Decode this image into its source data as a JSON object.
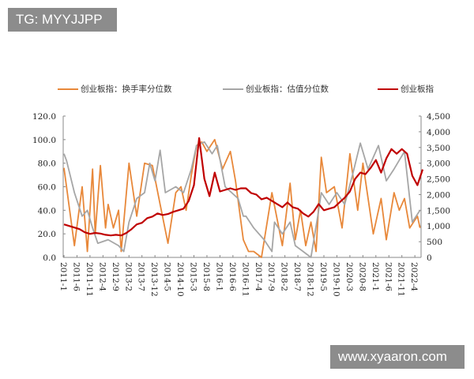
{
  "watermarks": {
    "top_left": "TG: MYYJJPP",
    "bottom_right": "www.xyaaron.com"
  },
  "chart_data": {
    "type": "line",
    "title": "",
    "legend_position": "top",
    "grid": false,
    "y_left": {
      "ylim": [
        0,
        120
      ],
      "ticks": [
        "0.0",
        "20.0",
        "40.0",
        "60.0",
        "80.0",
        "100.0",
        "120.0"
      ]
    },
    "y_right": {
      "ylim": [
        0,
        4500
      ],
      "ticks": [
        "0",
        "500",
        "1,000",
        "1,500",
        "2,000",
        "2,500",
        "3,000",
        "3,500",
        "4,000",
        "4,500"
      ]
    },
    "x_ticks": [
      "2011-1",
      "2011-6",
      "2011-11",
      "2012-4",
      "2012-9",
      "2013-2",
      "2013-7",
      "2013-12",
      "2014-5",
      "2014-10",
      "2015-3",
      "2015-8",
      "2016-1",
      "2016-6",
      "2016-11",
      "2017-4",
      "2017-9",
      "2018-2",
      "2018-7",
      "2018-12",
      "2019-5",
      "2019-10",
      "2020-3",
      "2020-8",
      "2021-1",
      "2021-6",
      "2021-11",
      "2022-4"
    ],
    "series": [
      {
        "name": "创业板指：换手率分位数",
        "axis": "left",
        "color": "#e8883a",
        "points": [
          [
            "2011-1",
            76
          ],
          [
            "2011-5",
            10
          ],
          [
            "2011-8",
            60
          ],
          [
            "2011-10",
            5
          ],
          [
            "2011-12",
            75
          ],
          [
            "2012-1",
            20
          ],
          [
            "2012-3",
            78
          ],
          [
            "2012-5",
            25
          ],
          [
            "2012-6",
            45
          ],
          [
            "2012-8",
            25
          ],
          [
            "2012-10",
            40
          ],
          [
            "2012-11",
            5
          ],
          [
            "2013-2",
            80
          ],
          [
            "2013-5",
            35
          ],
          [
            "2013-8",
            80
          ],
          [
            "2013-11",
            78
          ],
          [
            "2014-2",
            45
          ],
          [
            "2014-5",
            12
          ],
          [
            "2014-8",
            55
          ],
          [
            "2014-10",
            60
          ],
          [
            "2014-12",
            40
          ],
          [
            "2015-2",
            70
          ],
          [
            "2015-4",
            95
          ],
          [
            "2015-6",
            98
          ],
          [
            "2015-8",
            90
          ],
          [
            "2015-11",
            100
          ],
          [
            "2016-2",
            75
          ],
          [
            "2016-5",
            90
          ],
          [
            "2016-7",
            65
          ],
          [
            "2016-10",
            15
          ],
          [
            "2016-12",
            5
          ],
          [
            "2017-2",
            5
          ],
          [
            "2017-5",
            0
          ],
          [
            "2017-9",
            55
          ],
          [
            "2018-1",
            10
          ],
          [
            "2018-4",
            63
          ],
          [
            "2018-6",
            15
          ],
          [
            "2018-8",
            40
          ],
          [
            "2018-10",
            10
          ],
          [
            "2018-12",
            30
          ],
          [
            "2019-2",
            5
          ],
          [
            "2019-4",
            85
          ],
          [
            "2019-6",
            55
          ],
          [
            "2019-9",
            60
          ],
          [
            "2019-12",
            25
          ],
          [
            "2020-3",
            88
          ],
          [
            "2020-6",
            40
          ],
          [
            "2020-8",
            80
          ],
          [
            "2020-12",
            20
          ],
          [
            "2021-3",
            50
          ],
          [
            "2021-5",
            15
          ],
          [
            "2021-8",
            55
          ],
          [
            "2021-10",
            40
          ],
          [
            "2021-12",
            50
          ],
          [
            "2022-2",
            25
          ],
          [
            "2022-5",
            35
          ],
          [
            "2022-6",
            25
          ]
        ]
      },
      {
        "name": "创业板指：估值分位数",
        "axis": "left",
        "color": "#a6a6a6",
        "points": [
          [
            "2011-1",
            88
          ],
          [
            "2011-2",
            82
          ],
          [
            "2011-5",
            55
          ],
          [
            "2011-8",
            35
          ],
          [
            "2011-10",
            40
          ],
          [
            "2011-12",
            25
          ],
          [
            "2012-2",
            12
          ],
          [
            "2012-6",
            15
          ],
          [
            "2012-10",
            10
          ],
          [
            "2012-12",
            5
          ],
          [
            "2013-2",
            30
          ],
          [
            "2013-5",
            50
          ],
          [
            "2013-8",
            55
          ],
          [
            "2013-10",
            80
          ],
          [
            "2013-12",
            65
          ],
          [
            "2014-2",
            91
          ],
          [
            "2014-4",
            55
          ],
          [
            "2014-8",
            60
          ],
          [
            "2014-11",
            55
          ],
          [
            "2015-2",
            75
          ],
          [
            "2015-4",
            95
          ],
          [
            "2015-7",
            98
          ],
          [
            "2015-10",
            88
          ],
          [
            "2015-12",
            95
          ],
          [
            "2016-3",
            60
          ],
          [
            "2016-8",
            50
          ],
          [
            "2016-10",
            35
          ],
          [
            "2016-11",
            35
          ],
          [
            "2017-2",
            25
          ],
          [
            "2017-6",
            15
          ],
          [
            "2017-9",
            5
          ],
          [
            "2017-10",
            30
          ],
          [
            "2018-1",
            20
          ],
          [
            "2018-4",
            30
          ],
          [
            "2018-6",
            10
          ],
          [
            "2018-9",
            5
          ],
          [
            "2018-12",
            0
          ],
          [
            "2019-3",
            40
          ],
          [
            "2019-4",
            55
          ],
          [
            "2019-7",
            45
          ],
          [
            "2019-10",
            55
          ],
          [
            "2020-1",
            45
          ],
          [
            "2020-4",
            70
          ],
          [
            "2020-7",
            97
          ],
          [
            "2020-10",
            75
          ],
          [
            "2021-2",
            95
          ],
          [
            "2021-5",
            65
          ],
          [
            "2021-8",
            75
          ],
          [
            "2021-12",
            90
          ],
          [
            "2022-3",
            30
          ],
          [
            "2022-6",
            40
          ]
        ]
      },
      {
        "name": "创业板指",
        "axis": "right",
        "color": "#c00000",
        "points": [
          [
            "2011-1",
            1050
          ],
          [
            "2011-3",
            1000
          ],
          [
            "2011-5",
            950
          ],
          [
            "2011-7",
            900
          ],
          [
            "2011-9",
            800
          ],
          [
            "2011-11",
            750
          ],
          [
            "2012-1",
            780
          ],
          [
            "2012-3",
            760
          ],
          [
            "2012-5",
            720
          ],
          [
            "2012-7",
            700
          ],
          [
            "2012-9",
            720
          ],
          [
            "2012-11",
            700
          ],
          [
            "2013-1",
            780
          ],
          [
            "2013-3",
            900
          ],
          [
            "2013-5",
            1050
          ],
          [
            "2013-7",
            1100
          ],
          [
            "2013-9",
            1250
          ],
          [
            "2013-11",
            1300
          ],
          [
            "2014-1",
            1400
          ],
          [
            "2014-3",
            1350
          ],
          [
            "2014-5",
            1380
          ],
          [
            "2014-7",
            1450
          ],
          [
            "2014-9",
            1500
          ],
          [
            "2014-11",
            1550
          ],
          [
            "2015-1",
            1800
          ],
          [
            "2015-3",
            2300
          ],
          [
            "2015-5",
            3800
          ],
          [
            "2015-7",
            2500
          ],
          [
            "2015-9",
            1950
          ],
          [
            "2015-11",
            2700
          ],
          [
            "2016-1",
            2100
          ],
          [
            "2016-3",
            2150
          ],
          [
            "2016-5",
            2200
          ],
          [
            "2016-7",
            2150
          ],
          [
            "2016-9",
            2200
          ],
          [
            "2016-11",
            2200
          ],
          [
            "2017-1",
            2050
          ],
          [
            "2017-3",
            2000
          ],
          [
            "2017-5",
            1850
          ],
          [
            "2017-7",
            1900
          ],
          [
            "2017-9",
            1800
          ],
          [
            "2017-11",
            1700
          ],
          [
            "2018-1",
            1600
          ],
          [
            "2018-3",
            1750
          ],
          [
            "2018-5",
            1600
          ],
          [
            "2018-7",
            1550
          ],
          [
            "2018-9",
            1400
          ],
          [
            "2018-11",
            1300
          ],
          [
            "2019-1",
            1450
          ],
          [
            "2019-3",
            1700
          ],
          [
            "2019-5",
            1500
          ],
          [
            "2019-7",
            1550
          ],
          [
            "2019-9",
            1600
          ],
          [
            "2019-11",
            1750
          ],
          [
            "2020-1",
            1900
          ],
          [
            "2020-3",
            2100
          ],
          [
            "2020-5",
            2500
          ],
          [
            "2020-7",
            2700
          ],
          [
            "2020-9",
            2650
          ],
          [
            "2020-11",
            2850
          ],
          [
            "2021-1",
            3100
          ],
          [
            "2021-3",
            2700
          ],
          [
            "2021-5",
            3150
          ],
          [
            "2021-7",
            3450
          ],
          [
            "2021-9",
            3300
          ],
          [
            "2021-11",
            3450
          ],
          [
            "2022-1",
            3300
          ],
          [
            "2022-3",
            2600
          ],
          [
            "2022-5",
            2300
          ],
          [
            "2022-7",
            2800
          ]
        ]
      }
    ]
  }
}
